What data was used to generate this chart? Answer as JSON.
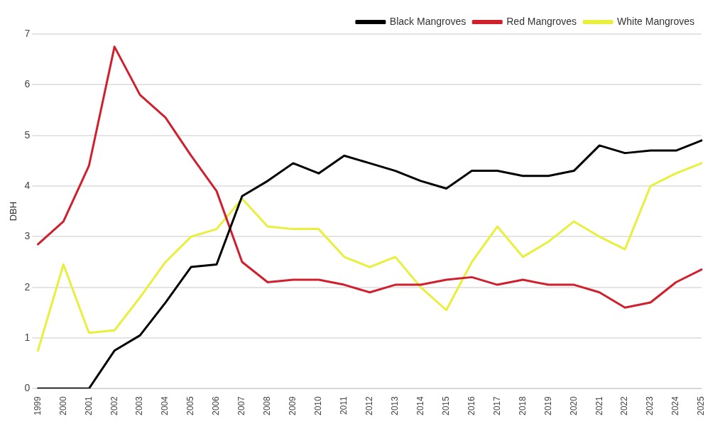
{
  "chart_data": {
    "type": "line",
    "ylabel": "DBH",
    "categories": [
      "1999",
      "2000",
      "2001",
      "2002",
      "2003",
      "2004",
      "2005",
      "2006",
      "2007",
      "2008",
      "2009",
      "2010",
      "2011",
      "2012",
      "2013",
      "2014",
      "2015",
      "2016",
      "2017",
      "2018",
      "2019",
      "2020",
      "2021",
      "2022",
      "2023",
      "2024",
      "2025"
    ],
    "series": [
      {
        "name": "Black Mangroves",
        "color": "#000000",
        "values": [
          0,
          0,
          0,
          0.75,
          1.05,
          1.7,
          2.4,
          2.45,
          3.8,
          4.1,
          4.45,
          4.25,
          4.6,
          4.45,
          4.3,
          4.1,
          3.95,
          4.3,
          4.3,
          4.2,
          4.2,
          4.3,
          4.8,
          4.65,
          4.7,
          4.7,
          4.9
        ]
      },
      {
        "name": "Red Mangroves",
        "color": "#d0202e",
        "values": [
          2.85,
          3.3,
          4.4,
          6.75,
          5.8,
          5.35,
          4.6,
          3.9,
          2.5,
          2.1,
          2.15,
          2.15,
          2.05,
          1.9,
          2.05,
          2.05,
          2.15,
          2.2,
          2.05,
          2.15,
          2.05,
          2.05,
          1.9,
          1.6,
          1.7,
          2.1,
          2.35
        ]
      },
      {
        "name": "White Mangroves",
        "color": "#e8f03c",
        "values": [
          0.75,
          2.45,
          1.1,
          1.15,
          1.8,
          2.5,
          3.0,
          3.15,
          3.75,
          3.2,
          3.15,
          3.15,
          2.6,
          2.4,
          2.6,
          2.0,
          1.55,
          2.5,
          3.2,
          2.6,
          2.9,
          3.3,
          3.0,
          2.75,
          4.0,
          4.25,
          4.45
        ]
      }
    ],
    "ylim": [
      0,
      7
    ],
    "yticks": [
      0,
      1,
      2,
      3,
      4,
      5,
      6,
      7
    ],
    "grid": "y",
    "legend": "top right",
    "marker": "none",
    "line_style": "solid"
  }
}
